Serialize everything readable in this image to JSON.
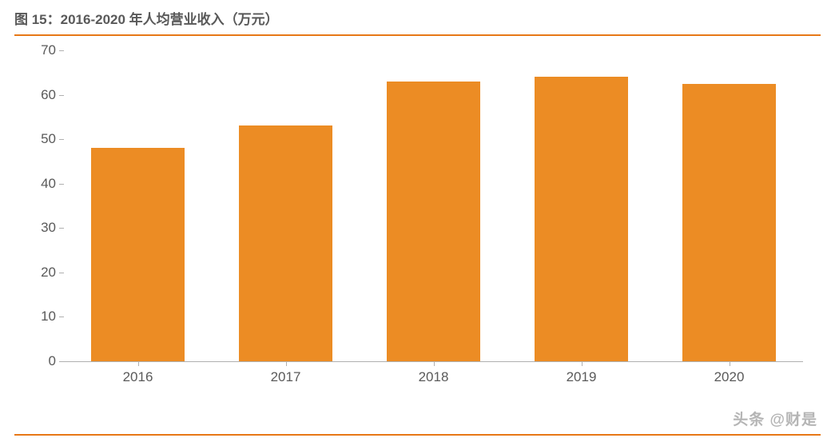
{
  "title": "图 15：2016-2020 年人均营业收入（万元）",
  "rule_color": "#e77817",
  "chart": {
    "type": "bar",
    "categories": [
      "2016",
      "2017",
      "2018",
      "2019",
      "2020"
    ],
    "values": [
      48,
      53,
      63,
      64,
      62.5
    ],
    "bar_color": "#ec8c24",
    "ylim": [
      0,
      70
    ],
    "ytick_step": 10,
    "yticks": [
      0,
      10,
      20,
      30,
      40,
      50,
      60,
      70
    ],
    "axis_color": "#b0b0b0",
    "label_color": "#5a5a5a",
    "label_fontsize": 17,
    "title_color": "#595959",
    "title_fontsize": 17,
    "background_color": "#ffffff",
    "bar_width_ratio": 0.63
  },
  "watermark": "头条 @财是"
}
